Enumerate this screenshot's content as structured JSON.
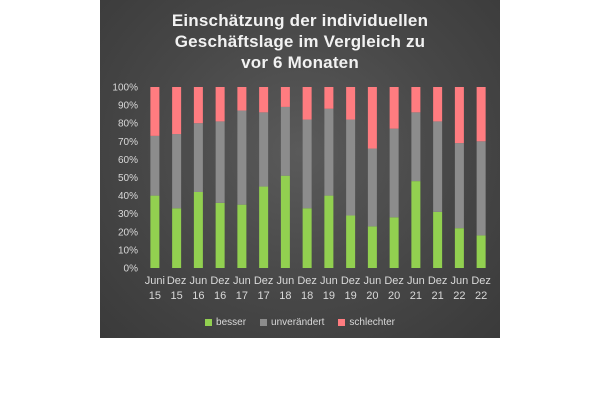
{
  "chart_data": {
    "type": "stacked-bar-100",
    "title_lines": [
      "Einschätzung der individuellen",
      "Geschäftslage im Vergleich zu",
      "vor 6 Monaten"
    ],
    "categories": [
      [
        "Juni",
        "15"
      ],
      [
        "Dez",
        "15"
      ],
      [
        "Jun",
        "16"
      ],
      [
        "Dez",
        "16"
      ],
      [
        "Jun",
        "17"
      ],
      [
        "Dez",
        "17"
      ],
      [
        "Jun",
        "18"
      ],
      [
        "Dez",
        "18"
      ],
      [
        "Jun",
        "19"
      ],
      [
        "Dez",
        "19"
      ],
      [
        "Jun",
        "20"
      ],
      [
        "Dez",
        "20"
      ],
      [
        "Jun",
        "21"
      ],
      [
        "Dez",
        "21"
      ],
      [
        "Jun",
        "22"
      ],
      [
        "Dez",
        "22"
      ]
    ],
    "series": [
      {
        "name": "besser",
        "color": "#92d050",
        "values": [
          40,
          33,
          42,
          36,
          35,
          45,
          51,
          33,
          40,
          29,
          23,
          28,
          48,
          31,
          22,
          18
        ]
      },
      {
        "name": "unverändert",
        "color": "#8c8c8c",
        "values": [
          33,
          41,
          38,
          45,
          52,
          41,
          38,
          49,
          48,
          53,
          43,
          49,
          38,
          50,
          47,
          52
        ]
      },
      {
        "name": "schlechter",
        "color": "#ff7c80",
        "values": [
          27,
          26,
          20,
          19,
          13,
          14,
          11,
          18,
          12,
          18,
          34,
          23,
          14,
          19,
          31,
          30
        ]
      }
    ],
    "yticks": [
      "0%",
      "10%",
      "20%",
      "30%",
      "40%",
      "50%",
      "60%",
      "70%",
      "80%",
      "90%",
      "100%"
    ],
    "ylim": [
      0,
      100
    ],
    "legend_position": "bottom"
  }
}
